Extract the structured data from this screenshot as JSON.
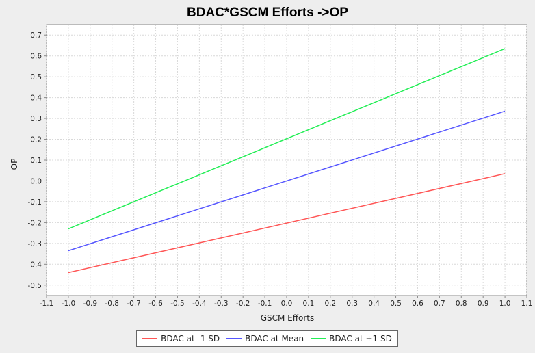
{
  "chart_data": {
    "type": "line",
    "title": "BDAC*GSCM Efforts ->OP",
    "xlabel": "GSCM Efforts",
    "ylabel": "OP",
    "xlim": [
      -1.1,
      1.1
    ],
    "ylim": [
      -0.55,
      0.75
    ],
    "x_ticks": [
      "-1.1",
      "-1.0",
      "-0.9",
      "-0.8",
      "-0.7",
      "-0.6",
      "-0.5",
      "-0.4",
      "-0.3",
      "-0.2",
      "-0.1",
      "0.0",
      "0.1",
      "0.2",
      "0.3",
      "0.4",
      "0.5",
      "0.6",
      "0.7",
      "0.8",
      "0.9",
      "1.0",
      "1.1"
    ],
    "y_ticks": [
      "0.7",
      "0.6",
      "0.5",
      "0.4",
      "0.3",
      "0.2",
      "0.1",
      "0.0",
      "-0.1",
      "-0.2",
      "-0.3",
      "-0.4",
      "-0.5"
    ],
    "grid": true,
    "legend_position": "bottom",
    "series": [
      {
        "name": "BDAC at -1 SD",
        "color": "#ff5555",
        "x": [
          -1.0,
          1.0
        ],
        "y": [
          -0.44,
          0.035
        ]
      },
      {
        "name": "BDAC at Mean",
        "color": "#5555ff",
        "x": [
          -1.0,
          1.0
        ],
        "y": [
          -0.335,
          0.335
        ]
      },
      {
        "name": "BDAC at +1 SD",
        "color": "#22ee55",
        "x": [
          -1.0,
          1.0
        ],
        "y": [
          -0.23,
          0.635
        ]
      }
    ]
  }
}
